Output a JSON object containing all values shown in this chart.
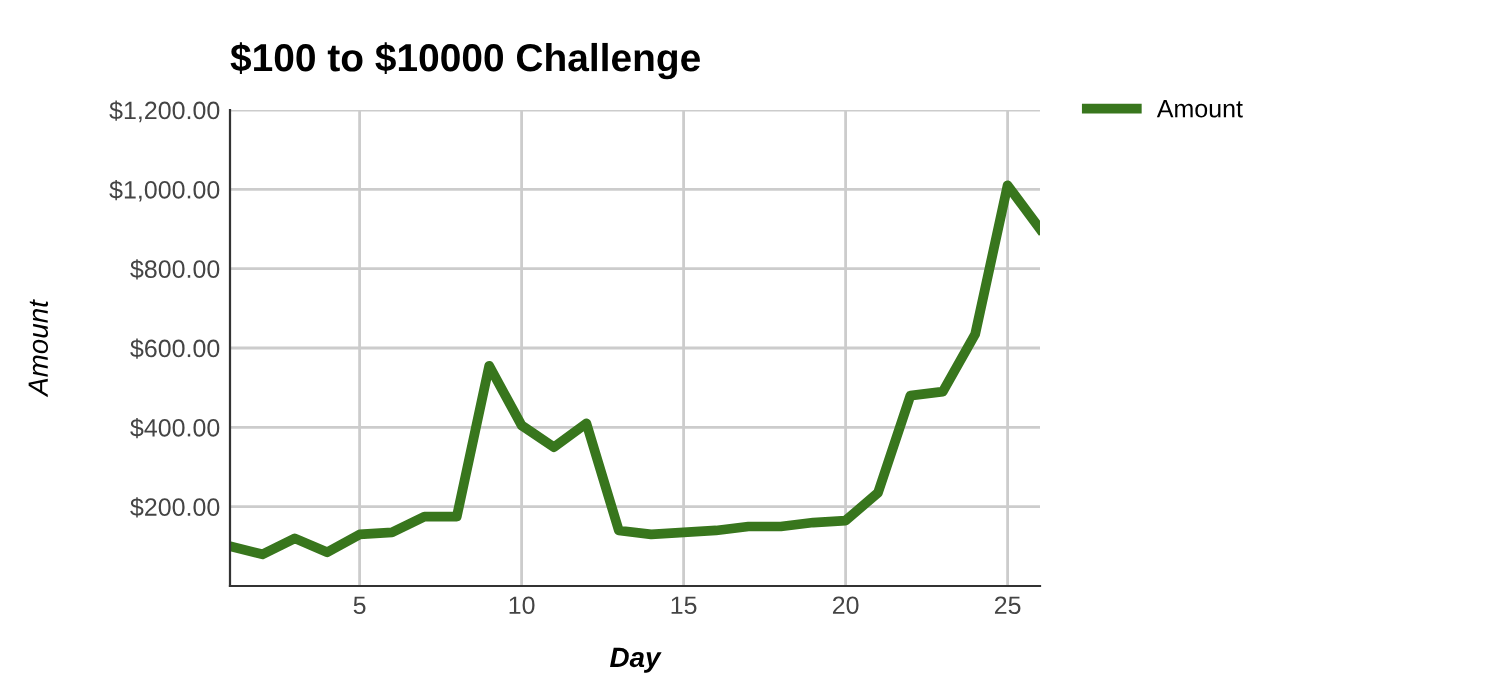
{
  "chart_data": {
    "type": "line",
    "title": "$100 to $10000 Challenge",
    "xlabel": "Day",
    "ylabel": "Amount",
    "x": [
      1,
      2,
      3,
      4,
      5,
      6,
      7,
      8,
      9,
      10,
      11,
      12,
      13,
      14,
      15,
      16,
      17,
      18,
      19,
      20,
      21,
      22,
      23,
      24,
      25,
      26
    ],
    "series": [
      {
        "name": "Amount",
        "color": "#38761d",
        "values": [
          100,
          80,
          120,
          85,
          130,
          135,
          175,
          175,
          555,
          405,
          350,
          410,
          140,
          130,
          135,
          140,
          150,
          150,
          160,
          165,
          235,
          480,
          490,
          635,
          1010,
          900
        ]
      }
    ],
    "xlim": [
      1,
      26
    ],
    "xticks": [
      5,
      10,
      15,
      20,
      25
    ],
    "ylim": [
      0,
      1200
    ],
    "yticks": [
      {
        "value": 200,
        "label": "$200.00"
      },
      {
        "value": 400,
        "label": "$400.00"
      },
      {
        "value": 600,
        "label": "$600.00"
      },
      {
        "value": 800,
        "label": "$800.00"
      },
      {
        "value": 1000,
        "label": "$1,000.00"
      },
      {
        "value": 1200,
        "label": "$1,200.00"
      }
    ],
    "grid": true,
    "legend": "top right",
    "marker": "none",
    "line_style": "solid"
  }
}
